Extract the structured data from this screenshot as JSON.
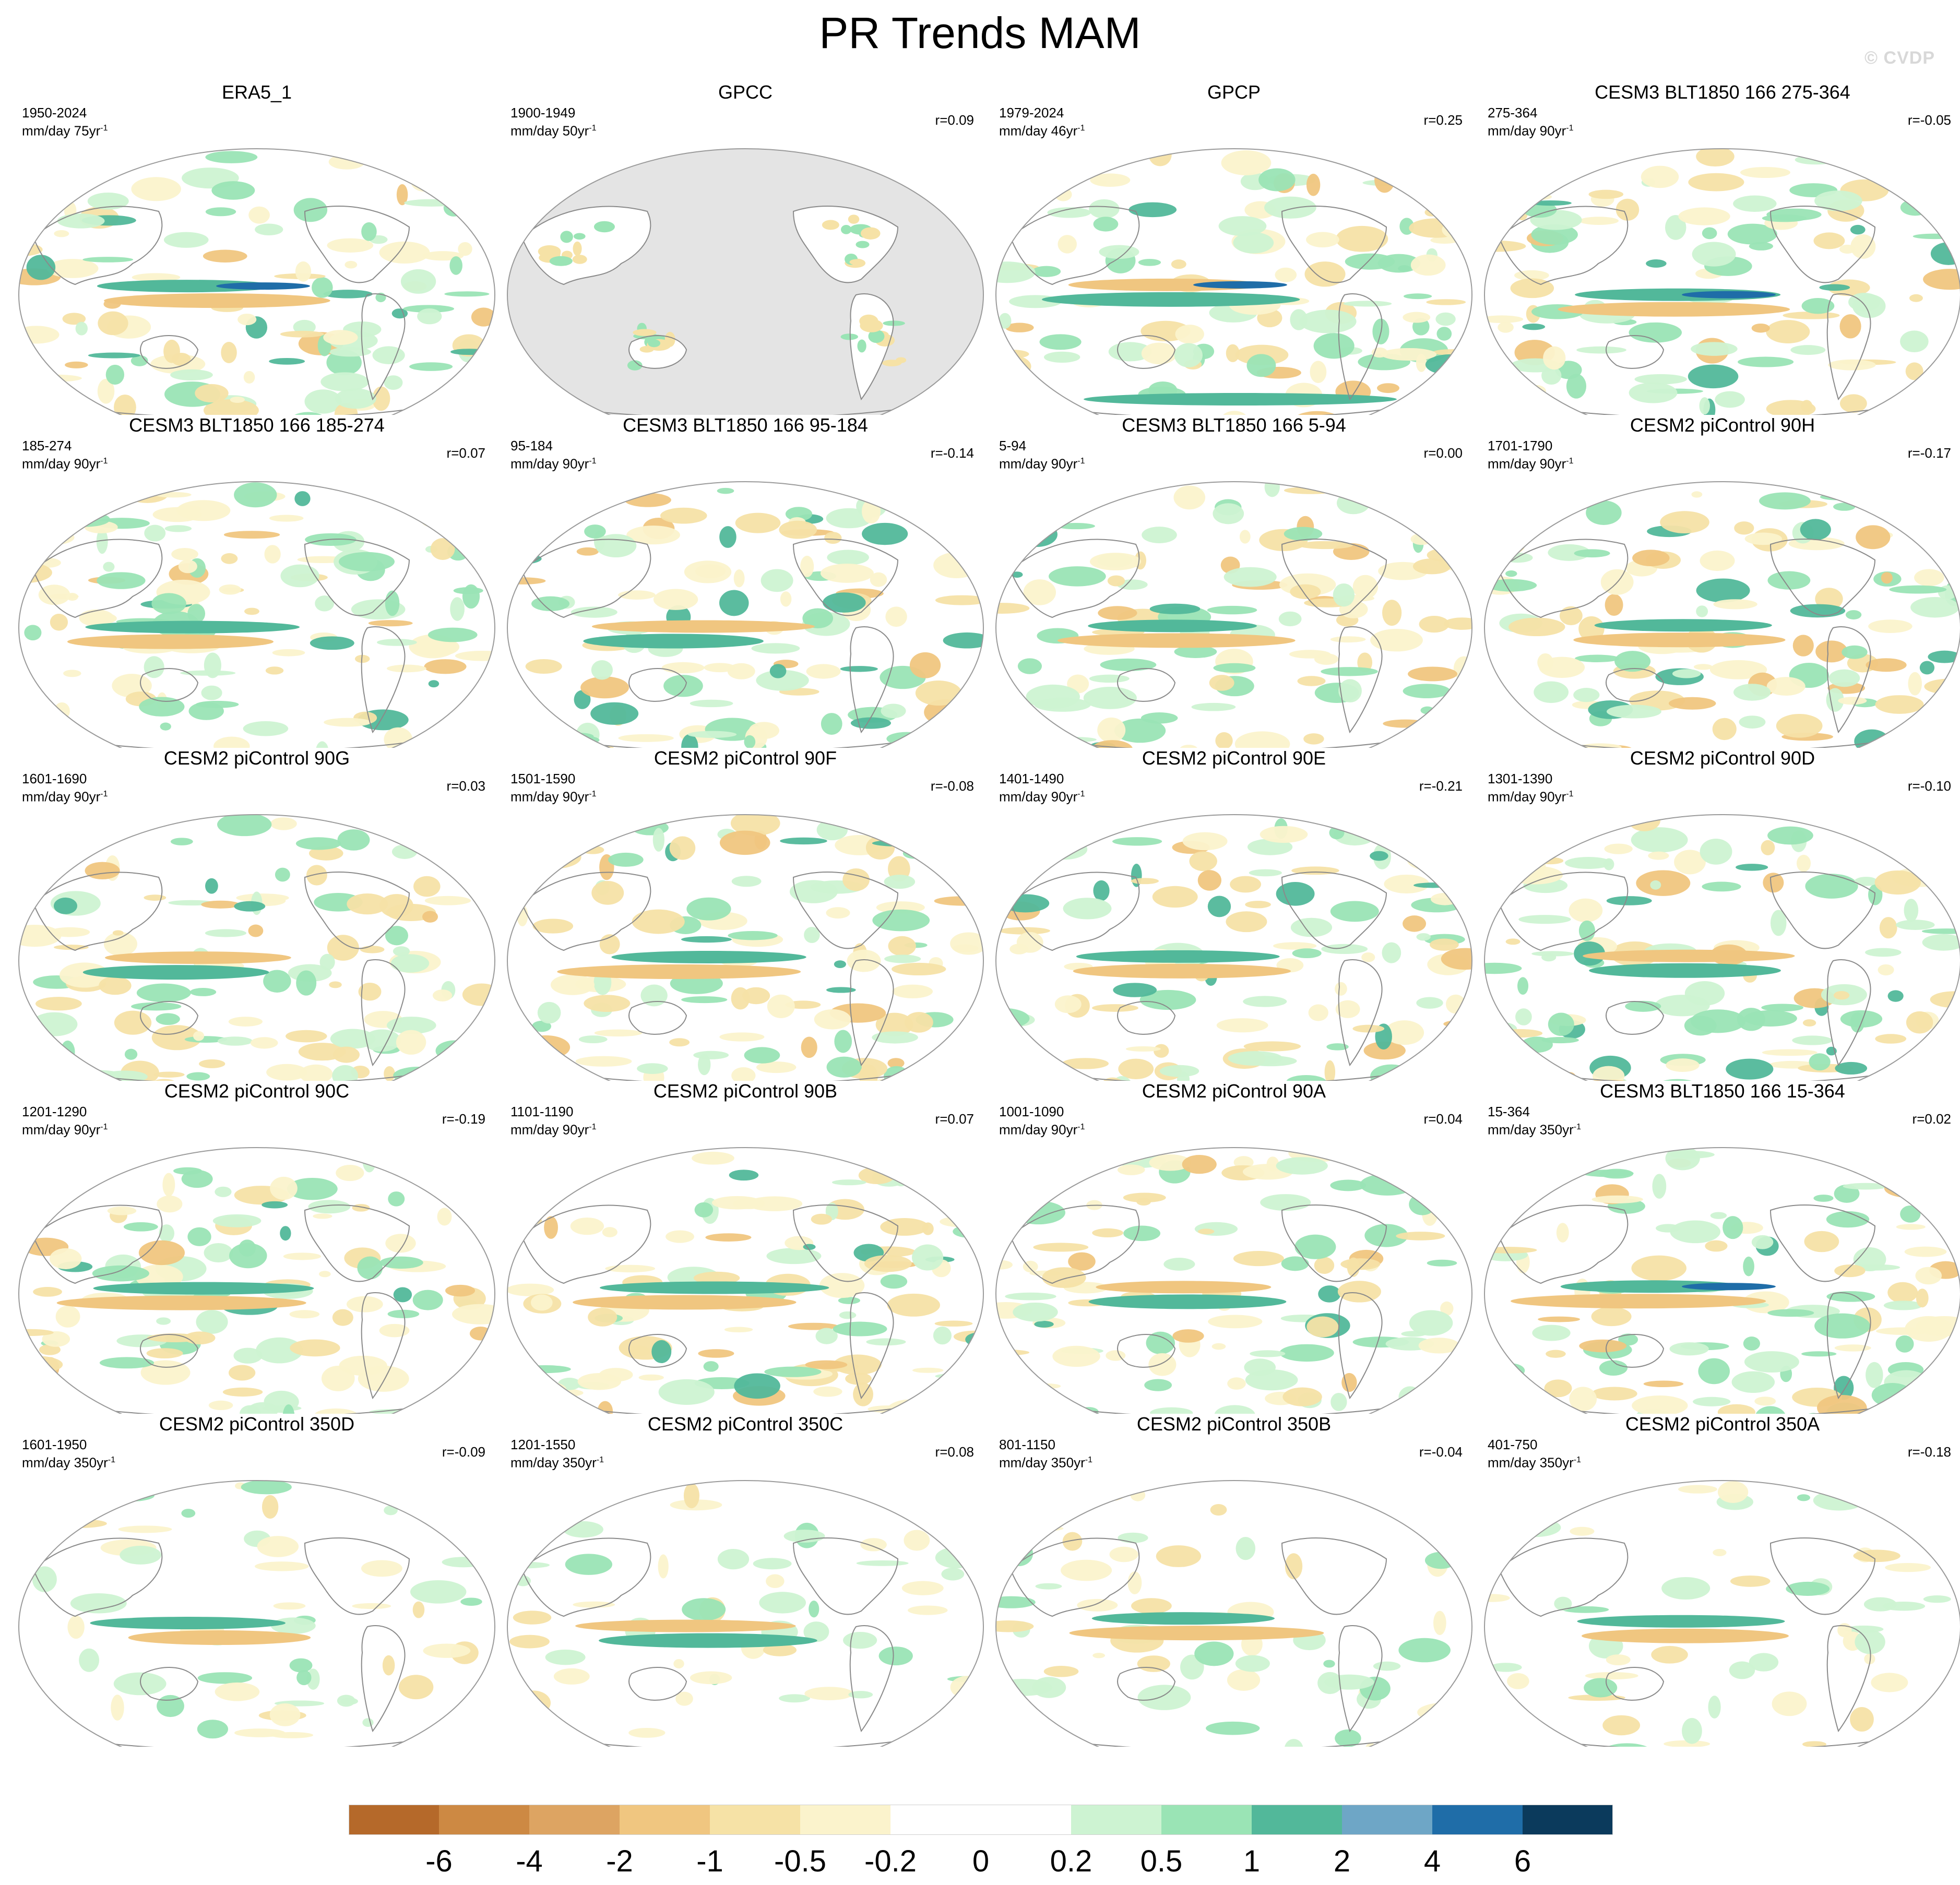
{
  "title": "PR Trends MAM",
  "watermark": "© CVDP",
  "panels": [
    {
      "title": "ERA5_1",
      "period": "1950-2024",
      "units": "mm/day 75yr",
      "unit_exp": "-1",
      "corr": "",
      "variant": 1
    },
    {
      "title": "GPCC",
      "period": "1900-1949",
      "units": "mm/day 50yr",
      "unit_exp": "-1",
      "corr": "r=0.09",
      "variant": 0
    },
    {
      "title": "GPCP",
      "period": "1979-2024",
      "units": "mm/day 46yr",
      "unit_exp": "-1",
      "corr": "r=0.25",
      "variant": 2
    },
    {
      "title": "CESM3 BLT1850 166 275-364",
      "period": "275-364",
      "units": "mm/day 90yr",
      "unit_exp": "-1",
      "corr": "r=-0.05",
      "variant": 3
    },
    {
      "title": "CESM3 BLT1850 166 185-274",
      "period": "185-274",
      "units": "mm/day 90yr",
      "unit_exp": "-1",
      "corr": "r=0.07",
      "variant": 4
    },
    {
      "title": "CESM3 BLT1850 166 95-184",
      "period": "95-184",
      "units": "mm/day 90yr",
      "unit_exp": "-1",
      "corr": "r=-0.14",
      "variant": 5
    },
    {
      "title": "CESM3 BLT1850 166 5-94",
      "period": "5-94",
      "units": "mm/day 90yr",
      "unit_exp": "-1",
      "corr": "r=0.00",
      "variant": 6
    },
    {
      "title": "CESM2 piControl 90H",
      "period": "1701-1790",
      "units": "mm/day 90yr",
      "unit_exp": "-1",
      "corr": "r=-0.17",
      "variant": 7
    },
    {
      "title": "CESM2 piControl 90G",
      "period": "1601-1690",
      "units": "mm/day 90yr",
      "unit_exp": "-1",
      "corr": "r=0.03",
      "variant": 8
    },
    {
      "title": "CESM2 piControl 90F",
      "period": "1501-1590",
      "units": "mm/day 90yr",
      "unit_exp": "-1",
      "corr": "r=-0.08",
      "variant": 9
    },
    {
      "title": "CESM2 piControl 90E",
      "period": "1401-1490",
      "units": "mm/day 90yr",
      "unit_exp": "-1",
      "corr": "r=-0.21",
      "variant": 10
    },
    {
      "title": "CESM2 piControl 90D",
      "period": "1301-1390",
      "units": "mm/day 90yr",
      "unit_exp": "-1",
      "corr": "r=-0.10",
      "variant": 11
    },
    {
      "title": "CESM2 piControl 90C",
      "period": "1201-1290",
      "units": "mm/day 90yr",
      "unit_exp": "-1",
      "corr": "r=-0.19",
      "variant": 12
    },
    {
      "title": "CESM2 piControl 90B",
      "period": "1101-1190",
      "units": "mm/day 90yr",
      "unit_exp": "-1",
      "corr": "r=0.07",
      "variant": 13
    },
    {
      "title": "CESM2 piControl 90A",
      "period": "1001-1090",
      "units": "mm/day 90yr",
      "unit_exp": "-1",
      "corr": "r=0.04",
      "variant": 14
    },
    {
      "title": "CESM3 BLT1850 166 15-364",
      "period": "15-364",
      "units": "mm/day 350yr",
      "unit_exp": "-1",
      "corr": "r=0.02",
      "variant": 15
    },
    {
      "title": "CESM2 piControl 350D",
      "period": "1601-1950",
      "units": "mm/day 350yr",
      "unit_exp": "-1",
      "corr": "r=-0.09",
      "variant": 16
    },
    {
      "title": "CESM2 piControl 350C",
      "period": "1201-1550",
      "units": "mm/day 350yr",
      "unit_exp": "-1",
      "corr": "r=0.08",
      "variant": 17
    },
    {
      "title": "CESM2 piControl 350B",
      "period": "801-1150",
      "units": "mm/day 350yr",
      "unit_exp": "-1",
      "corr": "r=-0.04",
      "variant": 18
    },
    {
      "title": "CESM2 piControl 350A",
      "period": "401-750",
      "units": "mm/day 350yr",
      "unit_exp": "-1",
      "corr": "r=-0.18",
      "variant": 19
    }
  ],
  "colorbar": {
    "labels": [
      "-6",
      "-4",
      "-2",
      "-1",
      "-0.5",
      "-0.2",
      "0",
      "0.2",
      "0.5",
      "1",
      "2",
      "4",
      "6"
    ],
    "colors": [
      "#b5692a",
      "#cd8943",
      "#dda462",
      "#f0c680",
      "#f6e2a6",
      "#fbf3cc",
      "#ffffff",
      "#ffffff",
      "#cdf3d2",
      "#9ae4b5",
      "#52b89a",
      "#6ea6c6",
      "#1f6da8",
      "#0b3a5c"
    ]
  },
  "map_palette": {
    "land_gray": "#e4e4e4",
    "coast": "#8a8a8a",
    "outline": "#9a9a9a"
  }
}
